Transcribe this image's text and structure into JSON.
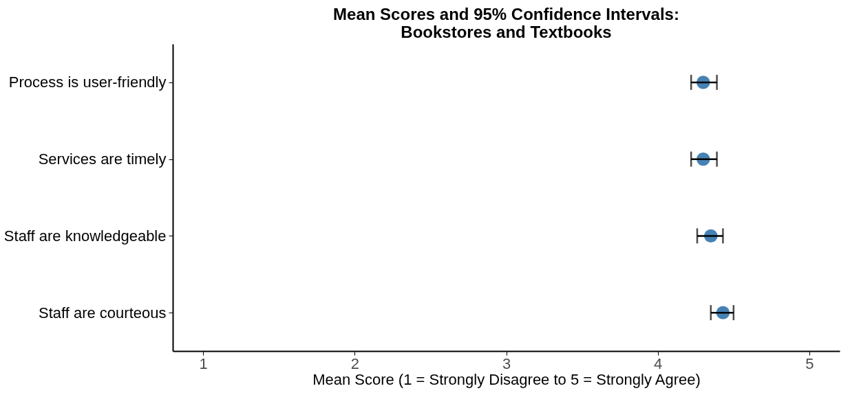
{
  "chart_data": {
    "type": "scatter",
    "orientation": "horizontal",
    "marker": "circle",
    "title": [
      "Mean Scores and 95% Confidence Intervals:",
      "Bookstores and Textbooks"
    ],
    "xlabel": "Mean Score (1 = Strongly Disagree to 5 = Strongly Agree)",
    "categories": [
      "Process is user-friendly",
      "Services are timely",
      "Staff are knowledgeable",
      "Staff are courteous"
    ],
    "values": [
      4.3,
      4.3,
      4.35,
      4.43
    ],
    "errors": [
      [
        4.22,
        4.39
      ],
      [
        4.22,
        4.39
      ],
      [
        4.26,
        4.43
      ],
      [
        4.35,
        4.5
      ]
    ],
    "color": "#4682b4",
    "xlim": [
      0.8,
      5.2
    ],
    "xticks": [
      1,
      2,
      3,
      4,
      5
    ],
    "grid": false
  }
}
